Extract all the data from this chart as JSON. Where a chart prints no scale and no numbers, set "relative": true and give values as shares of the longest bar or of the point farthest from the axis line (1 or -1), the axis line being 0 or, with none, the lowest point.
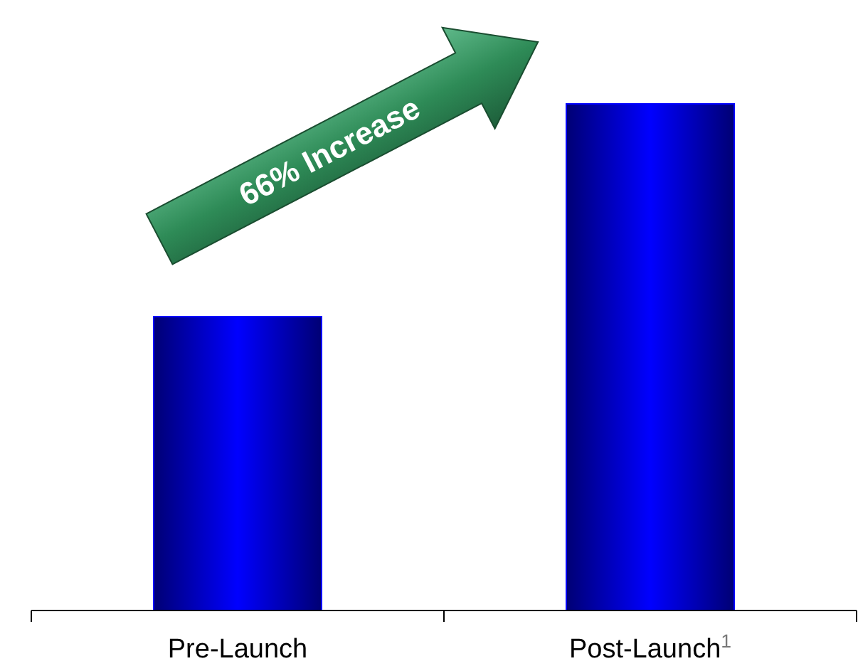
{
  "chart_data": {
    "type": "bar",
    "relative": true,
    "categories": [
      "Pre-Launch",
      "Post-Launch$^{1}$"
    ],
    "values": [
      0.58,
      1
    ],
    "color": "#0000ff",
    "annotations": [
      "66% Increase"
    ]
  }
}
